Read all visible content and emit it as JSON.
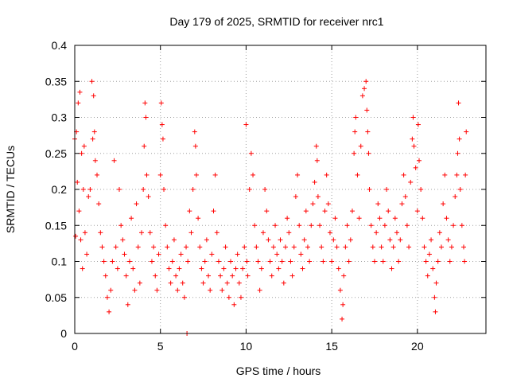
{
  "chart_data": {
    "type": "scatter",
    "title": "Day 179 of 2025, SRMTID for receiver nrc1",
    "xlabel": "GPS time / hours",
    "ylabel": "SRMTID / TECUs",
    "xlim": [
      0,
      24
    ],
    "ylim": [
      0,
      0.4
    ],
    "xticks": [
      0,
      5,
      10,
      15,
      20
    ],
    "xtick_labels": [
      "0",
      "5",
      "10",
      "15",
      "20"
    ],
    "yticks": [
      0,
      0.05,
      0.1,
      0.15,
      0.2,
      0.25,
      0.3,
      0.35,
      0.4
    ],
    "ytick_labels": [
      "0",
      "0.05",
      "0.1",
      "0.15",
      "0.2",
      "0.25",
      "0.3",
      "0.35",
      "0.4"
    ],
    "grid": true,
    "marker": "plus",
    "marker_color": "#ff0000",
    "series": [
      {
        "name": "SRMTID",
        "points": [
          [
            0.0,
            0.27
          ],
          [
            0.05,
            0.135
          ],
          [
            0.1,
            0.28
          ],
          [
            0.15,
            0.21
          ],
          [
            0.2,
            0.32
          ],
          [
            0.25,
            0.17
          ],
          [
            0.3,
            0.335
          ],
          [
            0.35,
            0.13
          ],
          [
            0.4,
            0.25
          ],
          [
            0.45,
            0.09
          ],
          [
            0.5,
            0.2
          ],
          [
            0.55,
            0.26
          ],
          [
            0.6,
            0.14
          ],
          [
            0.7,
            0.11
          ],
          [
            0.8,
            0.19
          ],
          [
            0.9,
            0.2
          ],
          [
            1.0,
            0.35
          ],
          [
            1.05,
            0.27
          ],
          [
            1.1,
            0.33
          ],
          [
            1.15,
            0.28
          ],
          [
            1.2,
            0.24
          ],
          [
            1.3,
            0.22
          ],
          [
            1.4,
            0.18
          ],
          [
            1.5,
            0.14
          ],
          [
            1.6,
            0.12
          ],
          [
            1.7,
            0.1
          ],
          [
            1.8,
            0.08
          ],
          [
            1.9,
            0.05
          ],
          [
            2.0,
            0.03
          ],
          [
            2.1,
            0.06
          ],
          [
            2.2,
            0.1
          ],
          [
            2.3,
            0.24
          ],
          [
            2.4,
            0.12
          ],
          [
            2.5,
            0.09
          ],
          [
            2.6,
            0.2
          ],
          [
            2.7,
            0.15
          ],
          [
            2.8,
            0.13
          ],
          [
            2.9,
            0.11
          ],
          [
            3.0,
            0.08
          ],
          [
            3.1,
            0.04
          ],
          [
            3.2,
            0.1
          ],
          [
            3.3,
            0.16
          ],
          [
            3.4,
            0.09
          ],
          [
            3.5,
            0.06
          ],
          [
            3.6,
            0.18
          ],
          [
            3.7,
            0.12
          ],
          [
            3.8,
            0.07
          ],
          [
            3.9,
            0.14
          ],
          [
            4.0,
            0.2
          ],
          [
            4.05,
            0.26
          ],
          [
            4.1,
            0.32
          ],
          [
            4.15,
            0.3
          ],
          [
            4.2,
            0.22
          ],
          [
            4.3,
            0.19
          ],
          [
            4.4,
            0.14
          ],
          [
            4.5,
            0.1
          ],
          [
            4.6,
            0.12
          ],
          [
            4.7,
            0.08
          ],
          [
            4.8,
            0.06
          ],
          [
            4.9,
            0.11
          ],
          [
            5.0,
            0.22
          ],
          [
            5.05,
            0.32
          ],
          [
            5.1,
            0.29
          ],
          [
            5.15,
            0.27
          ],
          [
            5.2,
            0.2
          ],
          [
            5.3,
            0.15
          ],
          [
            5.4,
            0.12
          ],
          [
            5.5,
            0.09
          ],
          [
            5.6,
            0.07
          ],
          [
            5.7,
            0.1
          ],
          [
            5.8,
            0.13
          ],
          [
            5.9,
            0.08
          ],
          [
            6.0,
            0.06
          ],
          [
            6.1,
            0.09
          ],
          [
            6.2,
            0.11
          ],
          [
            6.3,
            0.07
          ],
          [
            6.4,
            0.05
          ],
          [
            6.5,
            0.12
          ],
          [
            6.55,
            0.0
          ],
          [
            6.6,
            0.1
          ],
          [
            6.7,
            0.17
          ],
          [
            6.8,
            0.14
          ],
          [
            6.9,
            0.2
          ],
          [
            7.0,
            0.28
          ],
          [
            7.05,
            0.26
          ],
          [
            7.1,
            0.22
          ],
          [
            7.2,
            0.16
          ],
          [
            7.3,
            0.12
          ],
          [
            7.4,
            0.09
          ],
          [
            7.5,
            0.07
          ],
          [
            7.6,
            0.1
          ],
          [
            7.7,
            0.13
          ],
          [
            7.8,
            0.08
          ],
          [
            7.9,
            0.06
          ],
          [
            8.0,
            0.11
          ],
          [
            8.1,
            0.17
          ],
          [
            8.2,
            0.22
          ],
          [
            8.3,
            0.14
          ],
          [
            8.4,
            0.1
          ],
          [
            8.5,
            0.08
          ],
          [
            8.6,
            0.06
          ],
          [
            8.7,
            0.09
          ],
          [
            8.8,
            0.12
          ],
          [
            8.9,
            0.07
          ],
          [
            9.0,
            0.05
          ],
          [
            9.1,
            0.1
          ],
          [
            9.2,
            0.08
          ],
          [
            9.3,
            0.04
          ],
          [
            9.4,
            0.09
          ],
          [
            9.5,
            0.11
          ],
          [
            9.6,
            0.07
          ],
          [
            9.7,
            0.05
          ],
          [
            9.8,
            0.09
          ],
          [
            9.9,
            0.12
          ],
          [
            10.0,
            0.29
          ],
          [
            10.05,
            0.1
          ],
          [
            10.1,
            0.08
          ],
          [
            10.2,
            0.2
          ],
          [
            10.3,
            0.25
          ],
          [
            10.4,
            0.22
          ],
          [
            10.5,
            0.15
          ],
          [
            10.6,
            0.12
          ],
          [
            10.7,
            0.1
          ],
          [
            10.8,
            0.06
          ],
          [
            10.9,
            0.09
          ],
          [
            11.0,
            0.14
          ],
          [
            11.1,
            0.2
          ],
          [
            11.2,
            0.17
          ],
          [
            11.3,
            0.13
          ],
          [
            11.4,
            0.1
          ],
          [
            11.5,
            0.08
          ],
          [
            11.6,
            0.12
          ],
          [
            11.7,
            0.15
          ],
          [
            11.8,
            0.11
          ],
          [
            11.9,
            0.09
          ],
          [
            12.0,
            0.13
          ],
          [
            12.1,
            0.1
          ],
          [
            12.2,
            0.07
          ],
          [
            12.3,
            0.12
          ],
          [
            12.4,
            0.16
          ],
          [
            12.5,
            0.14
          ],
          [
            12.6,
            0.1
          ],
          [
            12.7,
            0.08
          ],
          [
            12.8,
            0.12
          ],
          [
            12.9,
            0.19
          ],
          [
            13.0,
            0.22
          ],
          [
            13.1,
            0.15
          ],
          [
            13.2,
            0.11
          ],
          [
            13.3,
            0.09
          ],
          [
            13.4,
            0.13
          ],
          [
            13.5,
            0.17
          ],
          [
            13.6,
            0.12
          ],
          [
            13.7,
            0.1
          ],
          [
            13.8,
            0.15
          ],
          [
            13.9,
            0.18
          ],
          [
            14.0,
            0.21
          ],
          [
            14.1,
            0.26
          ],
          [
            14.15,
            0.24
          ],
          [
            14.2,
            0.19
          ],
          [
            14.3,
            0.15
          ],
          [
            14.4,
            0.12
          ],
          [
            14.5,
            0.1
          ],
          [
            14.6,
            0.17
          ],
          [
            14.7,
            0.22
          ],
          [
            14.8,
            0.18
          ],
          [
            14.9,
            0.14
          ],
          [
            15.0,
            0.1
          ],
          [
            15.1,
            0.13
          ],
          [
            15.2,
            0.16
          ],
          [
            15.3,
            0.12
          ],
          [
            15.4,
            0.09
          ],
          [
            15.5,
            0.06
          ],
          [
            15.6,
            0.02
          ],
          [
            15.65,
            0.04
          ],
          [
            15.7,
            0.08
          ],
          [
            15.8,
            0.12
          ],
          [
            15.9,
            0.15
          ],
          [
            16.0,
            0.1
          ],
          [
            16.1,
            0.13
          ],
          [
            16.2,
            0.17
          ],
          [
            16.3,
            0.25
          ],
          [
            16.35,
            0.28
          ],
          [
            16.4,
            0.3
          ],
          [
            16.5,
            0.22
          ],
          [
            16.6,
            0.16
          ],
          [
            16.7,
            0.26
          ],
          [
            16.8,
            0.33
          ],
          [
            16.9,
            0.34
          ],
          [
            17.0,
            0.35
          ],
          [
            17.05,
            0.31
          ],
          [
            17.1,
            0.28
          ],
          [
            17.15,
            0.25
          ],
          [
            17.2,
            0.2
          ],
          [
            17.3,
            0.15
          ],
          [
            17.4,
            0.12
          ],
          [
            17.5,
            0.1
          ],
          [
            17.6,
            0.14
          ],
          [
            17.7,
            0.18
          ],
          [
            17.8,
            0.16
          ],
          [
            17.9,
            0.12
          ],
          [
            18.0,
            0.1
          ],
          [
            18.1,
            0.15
          ],
          [
            18.2,
            0.2
          ],
          [
            18.3,
            0.17
          ],
          [
            18.4,
            0.13
          ],
          [
            18.5,
            0.09
          ],
          [
            18.6,
            0.12
          ],
          [
            18.7,
            0.16
          ],
          [
            18.8,
            0.14
          ],
          [
            18.9,
            0.1
          ],
          [
            19.0,
            0.13
          ],
          [
            19.1,
            0.18
          ],
          [
            19.2,
            0.22
          ],
          [
            19.3,
            0.19
          ],
          [
            19.4,
            0.15
          ],
          [
            19.5,
            0.12
          ],
          [
            19.6,
            0.21
          ],
          [
            19.7,
            0.27
          ],
          [
            19.75,
            0.3
          ],
          [
            19.8,
            0.26
          ],
          [
            19.9,
            0.23
          ],
          [
            20.0,
            0.17
          ],
          [
            20.05,
            0.29
          ],
          [
            20.1,
            0.24
          ],
          [
            20.2,
            0.2
          ],
          [
            20.3,
            0.16
          ],
          [
            20.4,
            0.12
          ],
          [
            20.5,
            0.1
          ],
          [
            20.6,
            0.08
          ],
          [
            20.7,
            0.11
          ],
          [
            20.8,
            0.13
          ],
          [
            20.9,
            0.09
          ],
          [
            21.0,
            0.05
          ],
          [
            21.05,
            0.03
          ],
          [
            21.1,
            0.07
          ],
          [
            21.2,
            0.1
          ],
          [
            21.3,
            0.14
          ],
          [
            21.4,
            0.12
          ],
          [
            21.5,
            0.18
          ],
          [
            21.6,
            0.22
          ],
          [
            21.7,
            0.16
          ],
          [
            21.8,
            0.13
          ],
          [
            21.9,
            0.1
          ],
          [
            22.0,
            0.12
          ],
          [
            22.1,
            0.15
          ],
          [
            22.2,
            0.19
          ],
          [
            22.3,
            0.22
          ],
          [
            22.35,
            0.25
          ],
          [
            22.4,
            0.32
          ],
          [
            22.45,
            0.27
          ],
          [
            22.5,
            0.2
          ],
          [
            22.6,
            0.15
          ],
          [
            22.7,
            0.12
          ],
          [
            22.75,
            0.1
          ],
          [
            22.8,
            0.22
          ],
          [
            22.85,
            0.28
          ]
        ]
      }
    ]
  }
}
